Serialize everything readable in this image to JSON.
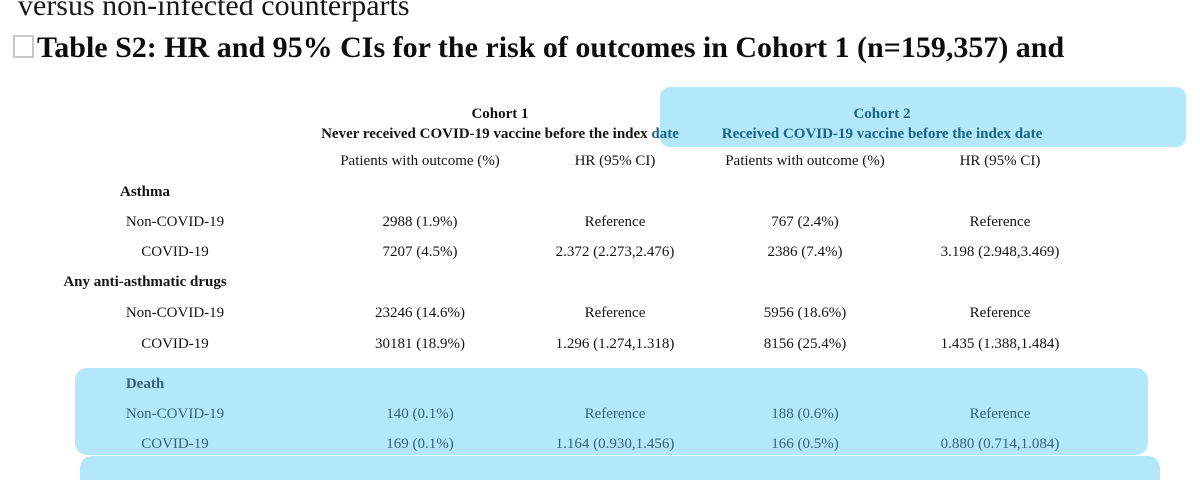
{
  "header": {
    "line1": "versus non-infected counterparts",
    "line2": "Table S2: HR and 95% CIs for the risk of outcomes in Cohort 1 (n=159,357) and"
  },
  "colors": {
    "highlight": "#b3e8fa",
    "header_teal": "#1a6486",
    "death_teal": "#34637a"
  },
  "table": {
    "cohort1": {
      "title": "Cohort 1",
      "subtitle_main": "Never received COVID-19 vaccine before the index",
      "subtitle_tail": "date"
    },
    "cohort2": {
      "title": "Cohort 2",
      "subtitle": "Received COVID-19 vaccine before the index date"
    },
    "subheaders": {
      "patients": "Patients with outcome (%)",
      "hr": "HR (95% CI)"
    },
    "sections": [
      {
        "label": "Asthma",
        "rows": [
          {
            "label": "Non-COVID-19",
            "c1p": "2988 (1.9%)",
            "c1h": "Reference",
            "c2p": "767 (2.4%)",
            "c2h": "Reference"
          },
          {
            "label": "COVID-19",
            "c1p": "7207 (4.5%)",
            "c1h": "2.372 (2.273,2.476)",
            "c2p": "2386 (7.4%)",
            "c2h": "3.198 (2.948,3.469)"
          }
        ]
      },
      {
        "label": "Any anti-asthmatic drugs",
        "rows": [
          {
            "label": "Non-COVID-19",
            "c1p": "23246 (14.6%)",
            "c1h": "Reference",
            "c2p": "5956 (18.6%)",
            "c2h": "Reference"
          },
          {
            "label": "COVID-19",
            "c1p": "30181 (18.9%)",
            "c1h": "1.296 (1.274,1.318)",
            "c2p": "8156 (25.4%)",
            "c2h": "1.435 (1.388,1.484)"
          }
        ]
      },
      {
        "label": "Death",
        "rows": [
          {
            "label": "Non-COVID-19",
            "c1p": "140 (0.1%)",
            "c1h": "Reference",
            "c2p": "188 (0.6%)",
            "c2h": "Reference"
          },
          {
            "label": "COVID-19",
            "c1p": "169 (0.1%)",
            "c1h": "1.164 (0.930,1.456)",
            "c2p": "166 (0.5%)",
            "c2h": "0.880 (0.714,1.084)"
          }
        ]
      }
    ]
  }
}
